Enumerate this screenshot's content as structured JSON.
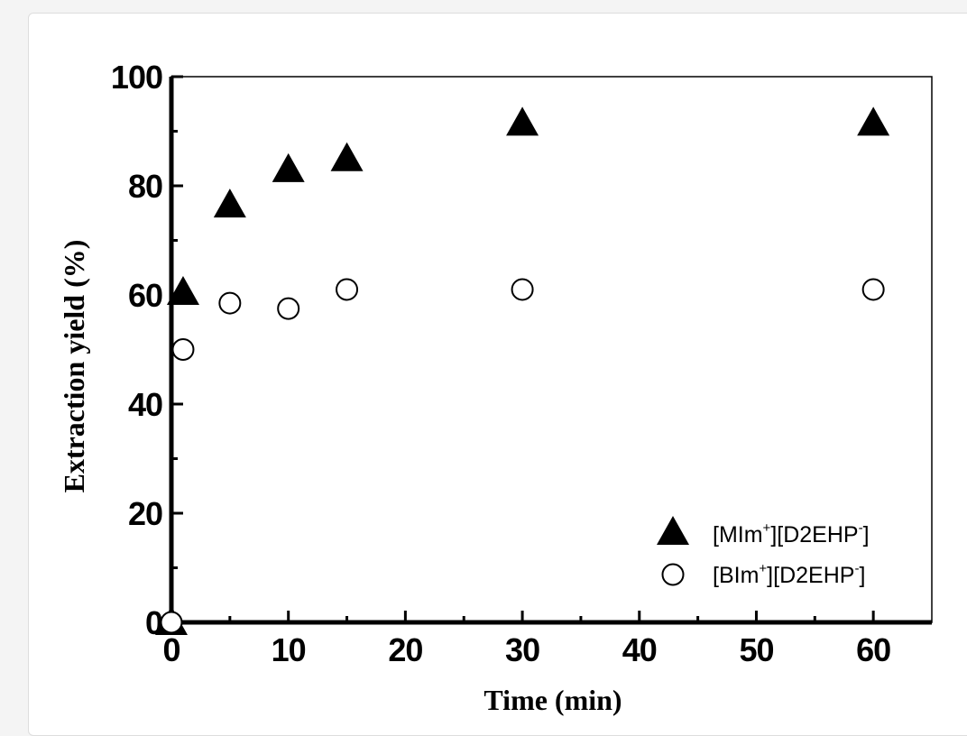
{
  "chart_data": {
    "type": "scatter",
    "xlabel": "Time (min)",
    "ylabel": "Extraction yield (%)",
    "xlim": [
      0,
      65
    ],
    "ylim": [
      0,
      100
    ],
    "x_ticks": [
      0,
      10,
      20,
      30,
      40,
      50,
      60
    ],
    "y_ticks": [
      0,
      20,
      40,
      60,
      80,
      100
    ],
    "grid": false,
    "legend_position": "bottom-right",
    "series": [
      {
        "name": "[MIm+][D2EHP-]",
        "legend_parts": [
          "[MIm",
          "+",
          "][D2EHP",
          "-",
          "]"
        ],
        "marker": "filled-triangle",
        "color": "#000000",
        "x": [
          0,
          1,
          5,
          10,
          15,
          30,
          60
        ],
        "y": [
          0,
          60.5,
          76.5,
          83,
          85,
          91.5,
          91.5
        ]
      },
      {
        "name": "[BIm+][D2EHP-]",
        "legend_parts": [
          "[BIm",
          "+",
          "][D2EHP",
          "-",
          "]"
        ],
        "marker": "open-circle",
        "color": "#000000",
        "x": [
          0,
          1,
          5,
          10,
          15,
          30,
          60
        ],
        "y": [
          0,
          50,
          58.5,
          57.5,
          61,
          61,
          61
        ]
      }
    ]
  }
}
